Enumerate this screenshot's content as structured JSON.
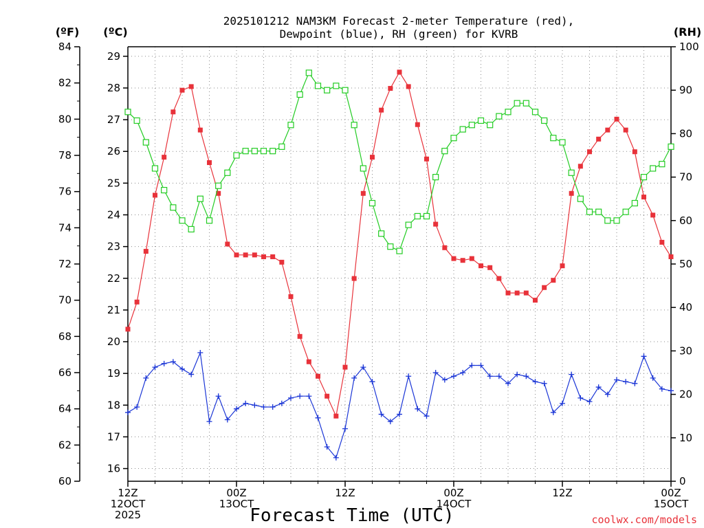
{
  "chart_data": {
    "type": "line",
    "title_line1": "2025101212 NAM3KM Forecast 2-meter Temperature (red),",
    "title_line2": "Dewpoint (blue), RH (green) for KVRB",
    "xlabel": "Forecast Time (UTC)",
    "credit": "coolwx.com/models",
    "colors": {
      "temp": "#e8323a",
      "dewpoint": "#1a35d6",
      "rh": "#22cc22"
    },
    "units": {
      "fahrenheit": "(ºF)",
      "celsius": "(ºC)",
      "rh": "(RH)"
    },
    "axes": {
      "fahrenheit": {
        "range": [
          60,
          84
        ],
        "ticks": [
          "60",
          "62",
          "64",
          "66",
          "68",
          "70",
          "72",
          "74",
          "76",
          "78",
          "80",
          "82",
          "84"
        ]
      },
      "celsius": {
        "range": [
          15.6,
          29.3
        ],
        "ticks": [
          "16",
          "17",
          "18",
          "19",
          "20",
          "21",
          "22",
          "23",
          "24",
          "25",
          "26",
          "27",
          "28",
          "29"
        ]
      },
      "rh": {
        "range": [
          0,
          100
        ],
        "ticks": [
          "0",
          "10",
          "20",
          "30",
          "40",
          "50",
          "60",
          "70",
          "80",
          "90",
          "100"
        ]
      },
      "x": {
        "range": [
          0,
          60
        ],
        "major_step": 12,
        "minor_step": 3
      }
    },
    "x_ticks": [
      {
        "hour": 0,
        "lines": [
          "12Z",
          "12OCT",
          "2025"
        ]
      },
      {
        "hour": 12,
        "lines": [
          "00Z",
          "13OCT"
        ]
      },
      {
        "hour": 24,
        "lines": [
          "12Z"
        ]
      },
      {
        "hour": 36,
        "lines": [
          "00Z",
          "14OCT"
        ]
      },
      {
        "hour": 48,
        "lines": [
          "12Z"
        ]
      },
      {
        "hour": 60,
        "lines": [
          "00Z",
          "15OCT"
        ]
      }
    ],
    "series": [
      {
        "name": "Temperature",
        "key": "temp",
        "unit": "F",
        "marker": "filled-square",
        "x": [
          0,
          1,
          2,
          3,
          4,
          5,
          6,
          7,
          8,
          9,
          10,
          11,
          12,
          13,
          14,
          15,
          16,
          17,
          18,
          19,
          20,
          21,
          22,
          23,
          24,
          25,
          26,
          27,
          28,
          29,
          30,
          31,
          32,
          33,
          34,
          35,
          36,
          37,
          38,
          39,
          40,
          41,
          42,
          43,
          44,
          45,
          46,
          47,
          48,
          49,
          50,
          51,
          52,
          53,
          54,
          55,
          56,
          57,
          58,
          59,
          60
        ],
        "values": [
          68.4,
          69.9,
          72.7,
          75.8,
          77.9,
          80.4,
          81.6,
          81.8,
          79.4,
          77.6,
          75.9,
          73.1,
          72.5,
          72.5,
          72.5,
          72.4,
          72.4,
          72.1,
          70.2,
          68.0,
          66.6,
          65.8,
          64.7,
          63.6,
          66.3,
          71.2,
          75.9,
          77.9,
          80.5,
          81.7,
          82.6,
          81.8,
          79.7,
          77.8,
          74.2,
          72.9,
          72.3,
          72.2,
          72.3,
          71.9,
          71.8,
          71.2,
          70.4,
          70.4,
          70.4,
          70.0,
          70.7,
          71.1,
          71.9,
          75.9,
          77.4,
          78.2,
          78.9,
          79.4,
          80.0,
          79.4,
          78.2,
          75.7,
          74.7,
          73.2,
          72.4
        ]
      },
      {
        "name": "Dewpoint",
        "key": "dewpoint",
        "unit": "F",
        "marker": "plus",
        "x": [
          0,
          1,
          2,
          3,
          4,
          5,
          6,
          7,
          8,
          9,
          10,
          11,
          12,
          13,
          14,
          15,
          16,
          17,
          18,
          19,
          20,
          21,
          22,
          23,
          24,
          25,
          26,
          27,
          28,
          29,
          30,
          31,
          32,
          33,
          34,
          35,
          36,
          37,
          38,
          39,
          40,
          41,
          42,
          43,
          44,
          45,
          46,
          47,
          48,
          49,
          50,
          51,
          52,
          53,
          54,
          55,
          56,
          57,
          58,
          59,
          60
        ],
        "values": [
          63.8,
          64.1,
          65.7,
          66.3,
          66.5,
          66.6,
          66.2,
          65.9,
          67.1,
          63.3,
          64.7,
          63.4,
          64.0,
          64.3,
          64.2,
          64.1,
          64.1,
          64.3,
          64.6,
          64.7,
          64.7,
          63.5,
          61.9,
          61.3,
          62.9,
          65.7,
          66.3,
          65.5,
          63.7,
          63.3,
          63.7,
          65.8,
          64.0,
          63.6,
          66.0,
          65.6,
          65.8,
          66.0,
          66.4,
          66.4,
          65.8,
          65.8,
          65.4,
          65.9,
          65.8,
          65.5,
          65.4,
          63.8,
          64.3,
          65.9,
          64.6,
          64.4,
          65.2,
          64.8,
          65.6,
          65.5,
          65.4,
          66.9,
          65.7,
          65.1,
          65.0
        ]
      },
      {
        "name": "Relative Humidity",
        "key": "rh",
        "unit": "%",
        "marker": "open-square",
        "x": [
          0,
          1,
          2,
          3,
          4,
          5,
          6,
          7,
          8,
          9,
          10,
          11,
          12,
          13,
          14,
          15,
          16,
          17,
          18,
          19,
          20,
          21,
          22,
          23,
          24,
          25,
          26,
          27,
          28,
          29,
          30,
          31,
          32,
          33,
          34,
          35,
          36,
          37,
          38,
          39,
          40,
          41,
          42,
          43,
          44,
          45,
          46,
          47,
          48,
          49,
          50,
          51,
          52,
          53,
          54,
          55,
          56,
          57,
          58,
          59,
          60
        ],
        "values": [
          85,
          83,
          78,
          72,
          67,
          63,
          60,
          58,
          65,
          60,
          68,
          71,
          75,
          76,
          76,
          76,
          76,
          77,
          82,
          89,
          94,
          91,
          90,
          91,
          90,
          82,
          72,
          64,
          57,
          54,
          53,
          59,
          61,
          61,
          70,
          76,
          79,
          81,
          82,
          83,
          82,
          84,
          85,
          87,
          87,
          85,
          83,
          79,
          78,
          71,
          65,
          62,
          62,
          60,
          60,
          62,
          64,
          70,
          72,
          73,
          77
        ]
      }
    ]
  }
}
